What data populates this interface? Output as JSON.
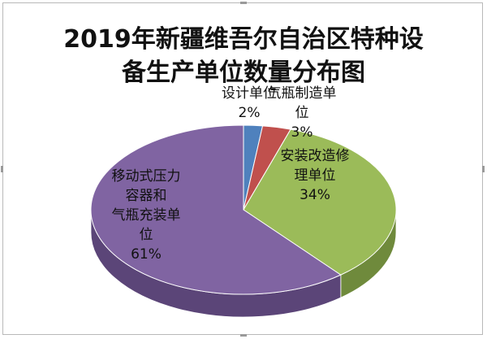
{
  "chart_data": {
    "type": "pie",
    "title_lines": [
      "2019年新疆维吾尔自治区特种设",
      "备生产单位数量分布图"
    ],
    "slices": [
      {
        "label_lines": [
          "设计单位",
          "2%"
        ],
        "value": 2,
        "color": "#4f81bd",
        "side": "#3a6190"
      },
      {
        "label_lines": [
          "气瓶制造单",
          "位",
          "3%"
        ],
        "value": 3,
        "color": "#c0504d",
        "side": "#8e3a38"
      },
      {
        "label_lines": [
          "安装改造修",
          "理单位",
          "34%"
        ],
        "value": 34,
        "color": "#9bbb59",
        "side": "#6f8a3c"
      },
      {
        "label_lines": [
          "移动式压力",
          "容器和",
          "气瓶充装单",
          "位",
          "61%"
        ],
        "value": 61,
        "color": "#8064a2",
        "side": "#5b4578"
      }
    ]
  }
}
